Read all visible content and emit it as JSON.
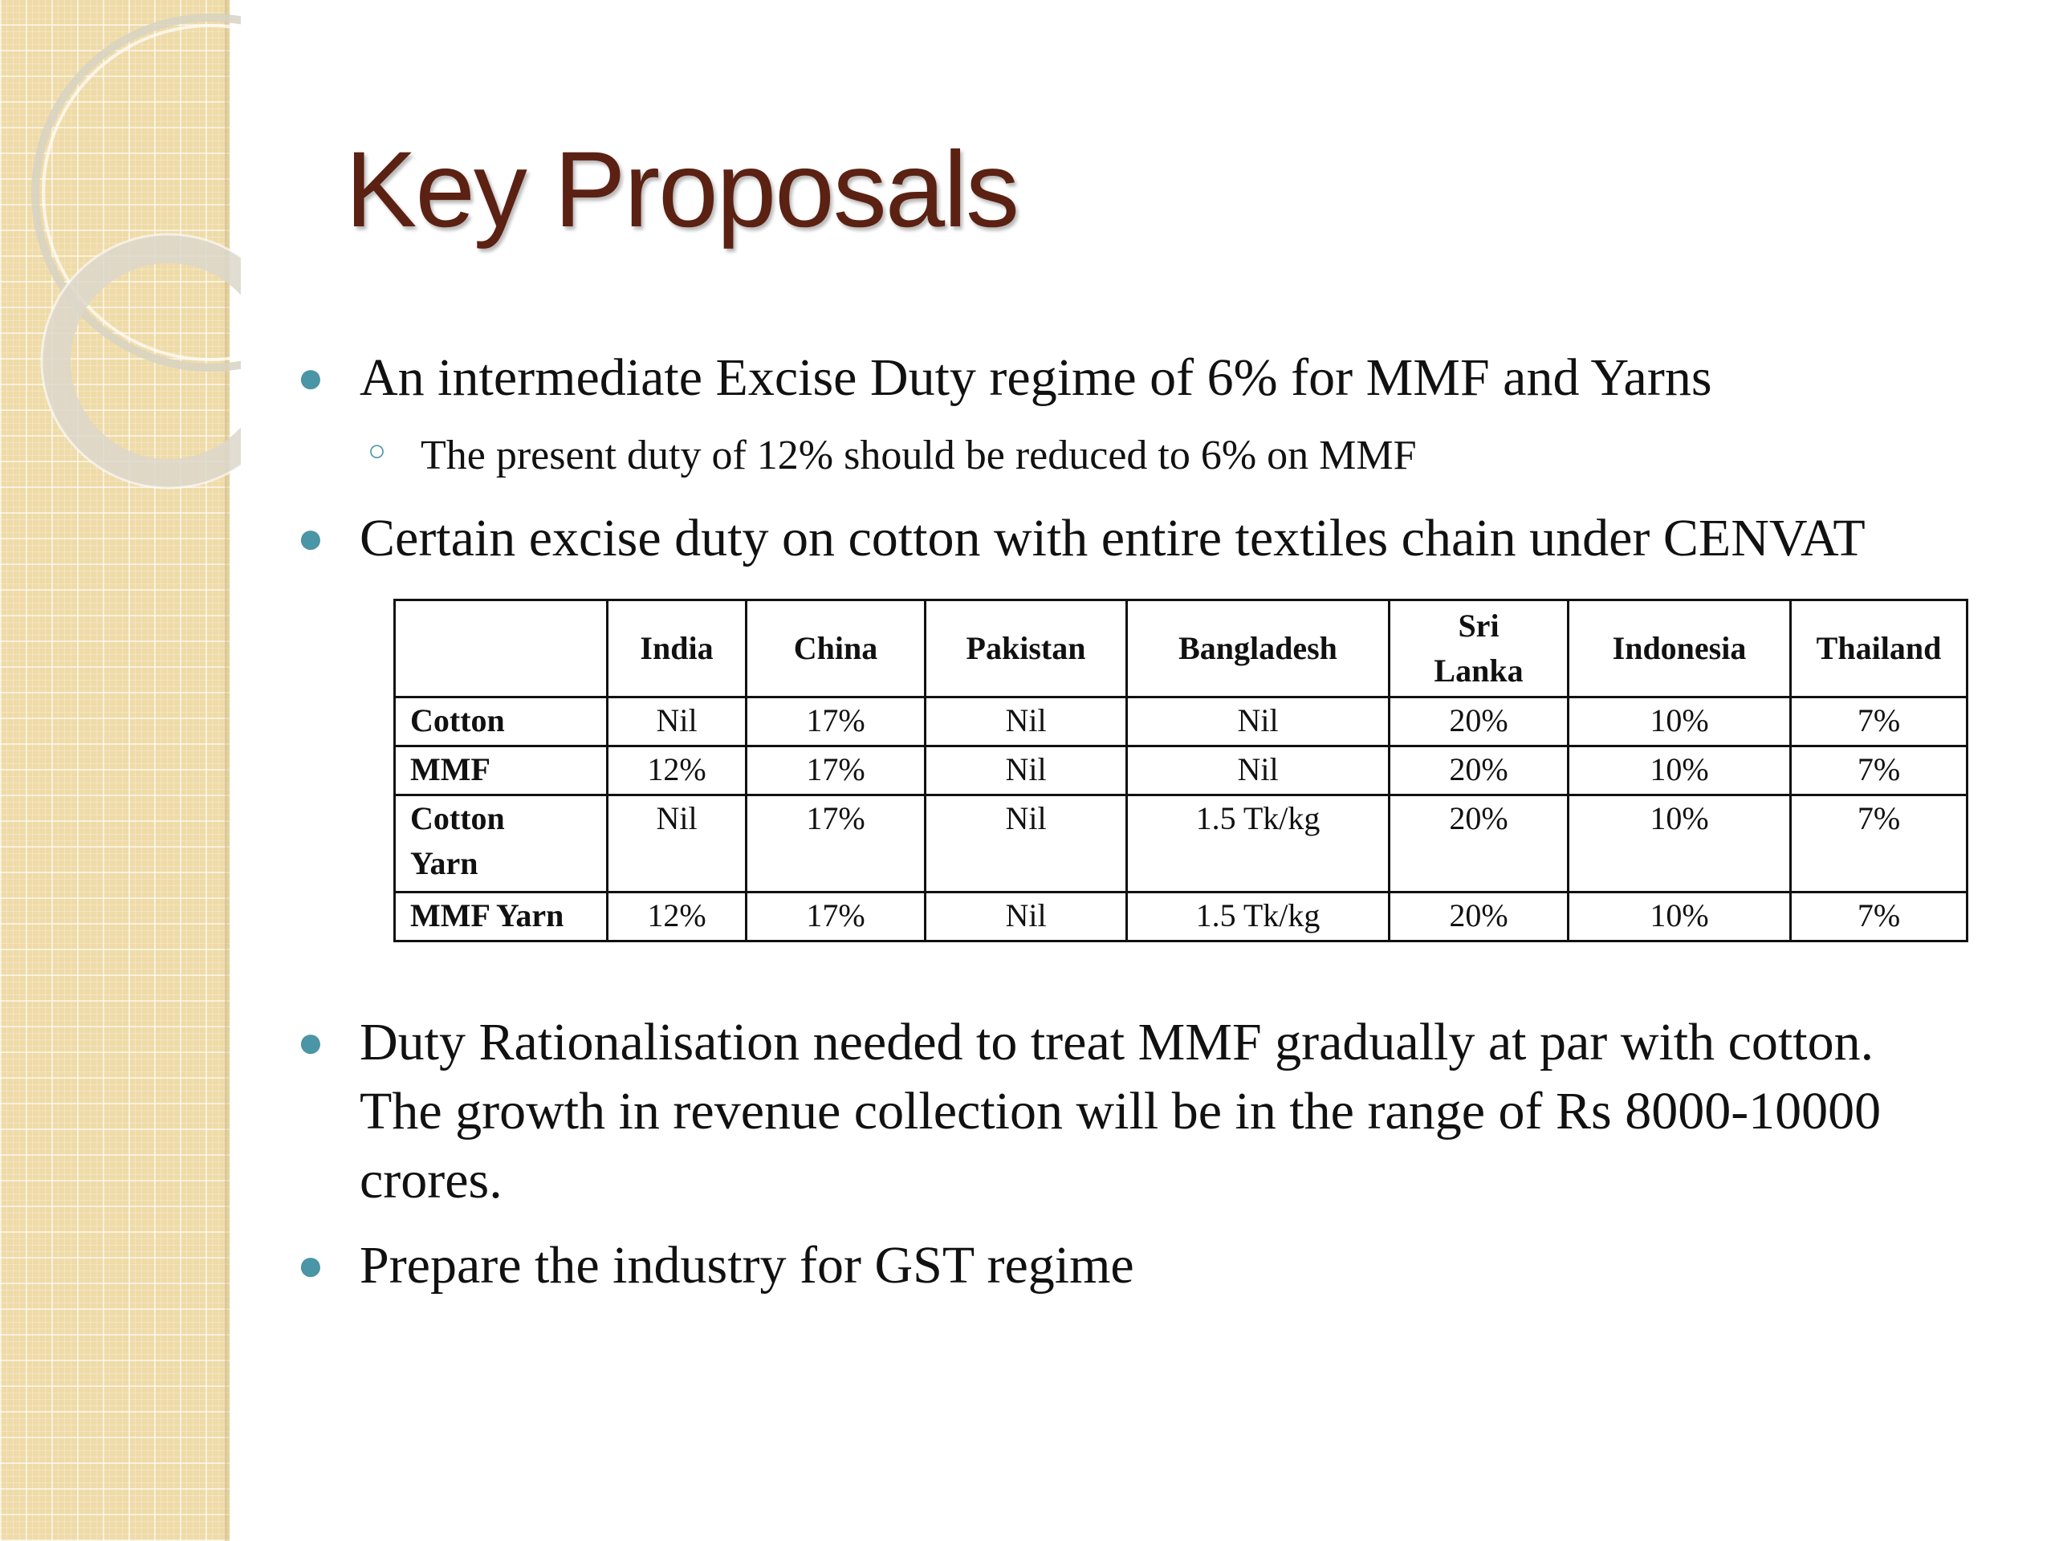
{
  "title": "Key Proposals",
  "bullets": {
    "b1": "An intermediate Excise Duty regime of 6% for MMF and Yarns",
    "b1_sub": "The present duty of 12% should be reduced to 6% on MMF",
    "b2": "Certain excise duty on cotton with entire textiles chain under CENVAT",
    "b3_line1": "Duty Rationalisation needed to treat MMF gradually at par with cotton.",
    "b3_line2": "The growth in revenue collection will be in the range of Rs 8000-10000",
    "b3_line3": "crores.",
    "b4": "Prepare the industry for GST regime"
  },
  "table": {
    "headers": [
      "",
      "India",
      "China",
      "Pakistan",
      "Bangladesh",
      "Sri Lanka",
      "Indonesia",
      "Thailand"
    ],
    "header_sri_1": "Sri",
    "header_sri_2": "Lanka",
    "rows": [
      {
        "label": "Cotton",
        "cells": [
          "Nil",
          "17%",
          "Nil",
          "Nil",
          "20%",
          "10%",
          "7%"
        ]
      },
      {
        "label": "MMF",
        "cells": [
          "12%",
          "17%",
          "Nil",
          "Nil",
          "20%",
          "10%",
          "7%"
        ]
      },
      {
        "label_1": "Cotton",
        "label_2": "Yarn",
        "cells": [
          "Nil",
          "17%",
          "Nil",
          "1.5 Tk/kg",
          "20%",
          "10%",
          "7%"
        ]
      },
      {
        "label": "MMF Yarn",
        "cells": [
          "12%",
          "17%",
          "Nil",
          "1.5 Tk/kg",
          "20%",
          "10%",
          "7%"
        ]
      }
    ]
  },
  "colors": {
    "title": "#5b2113",
    "bullet": "#4a95a6",
    "sidebar": "#efdba8"
  }
}
